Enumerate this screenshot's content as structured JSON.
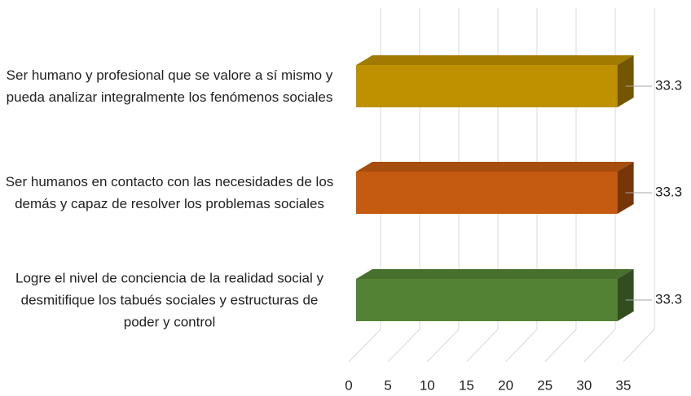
{
  "chart_data": {
    "type": "bar3d_horizontal",
    "categories": [
      "Ser humano y profesional que se valore a sí mismo y pueda analizar integralmente los fenómenos sociales",
      "Ser humanos en contacto con las necesidades de los demás y capaz de resolver los problemas sociales",
      "Logre el nivel de conciencia de la realidad social y desmitifique los tabués sociales y estructuras de poder y control"
    ],
    "values": [
      33.3,
      33.3,
      33.3
    ],
    "colors": [
      "#bf9000",
      "#c55a11",
      "#548235"
    ],
    "xlim": [
      0,
      35
    ],
    "xticks": [
      0,
      5,
      10,
      15,
      20,
      25,
      30,
      35
    ],
    "grid": true
  }
}
